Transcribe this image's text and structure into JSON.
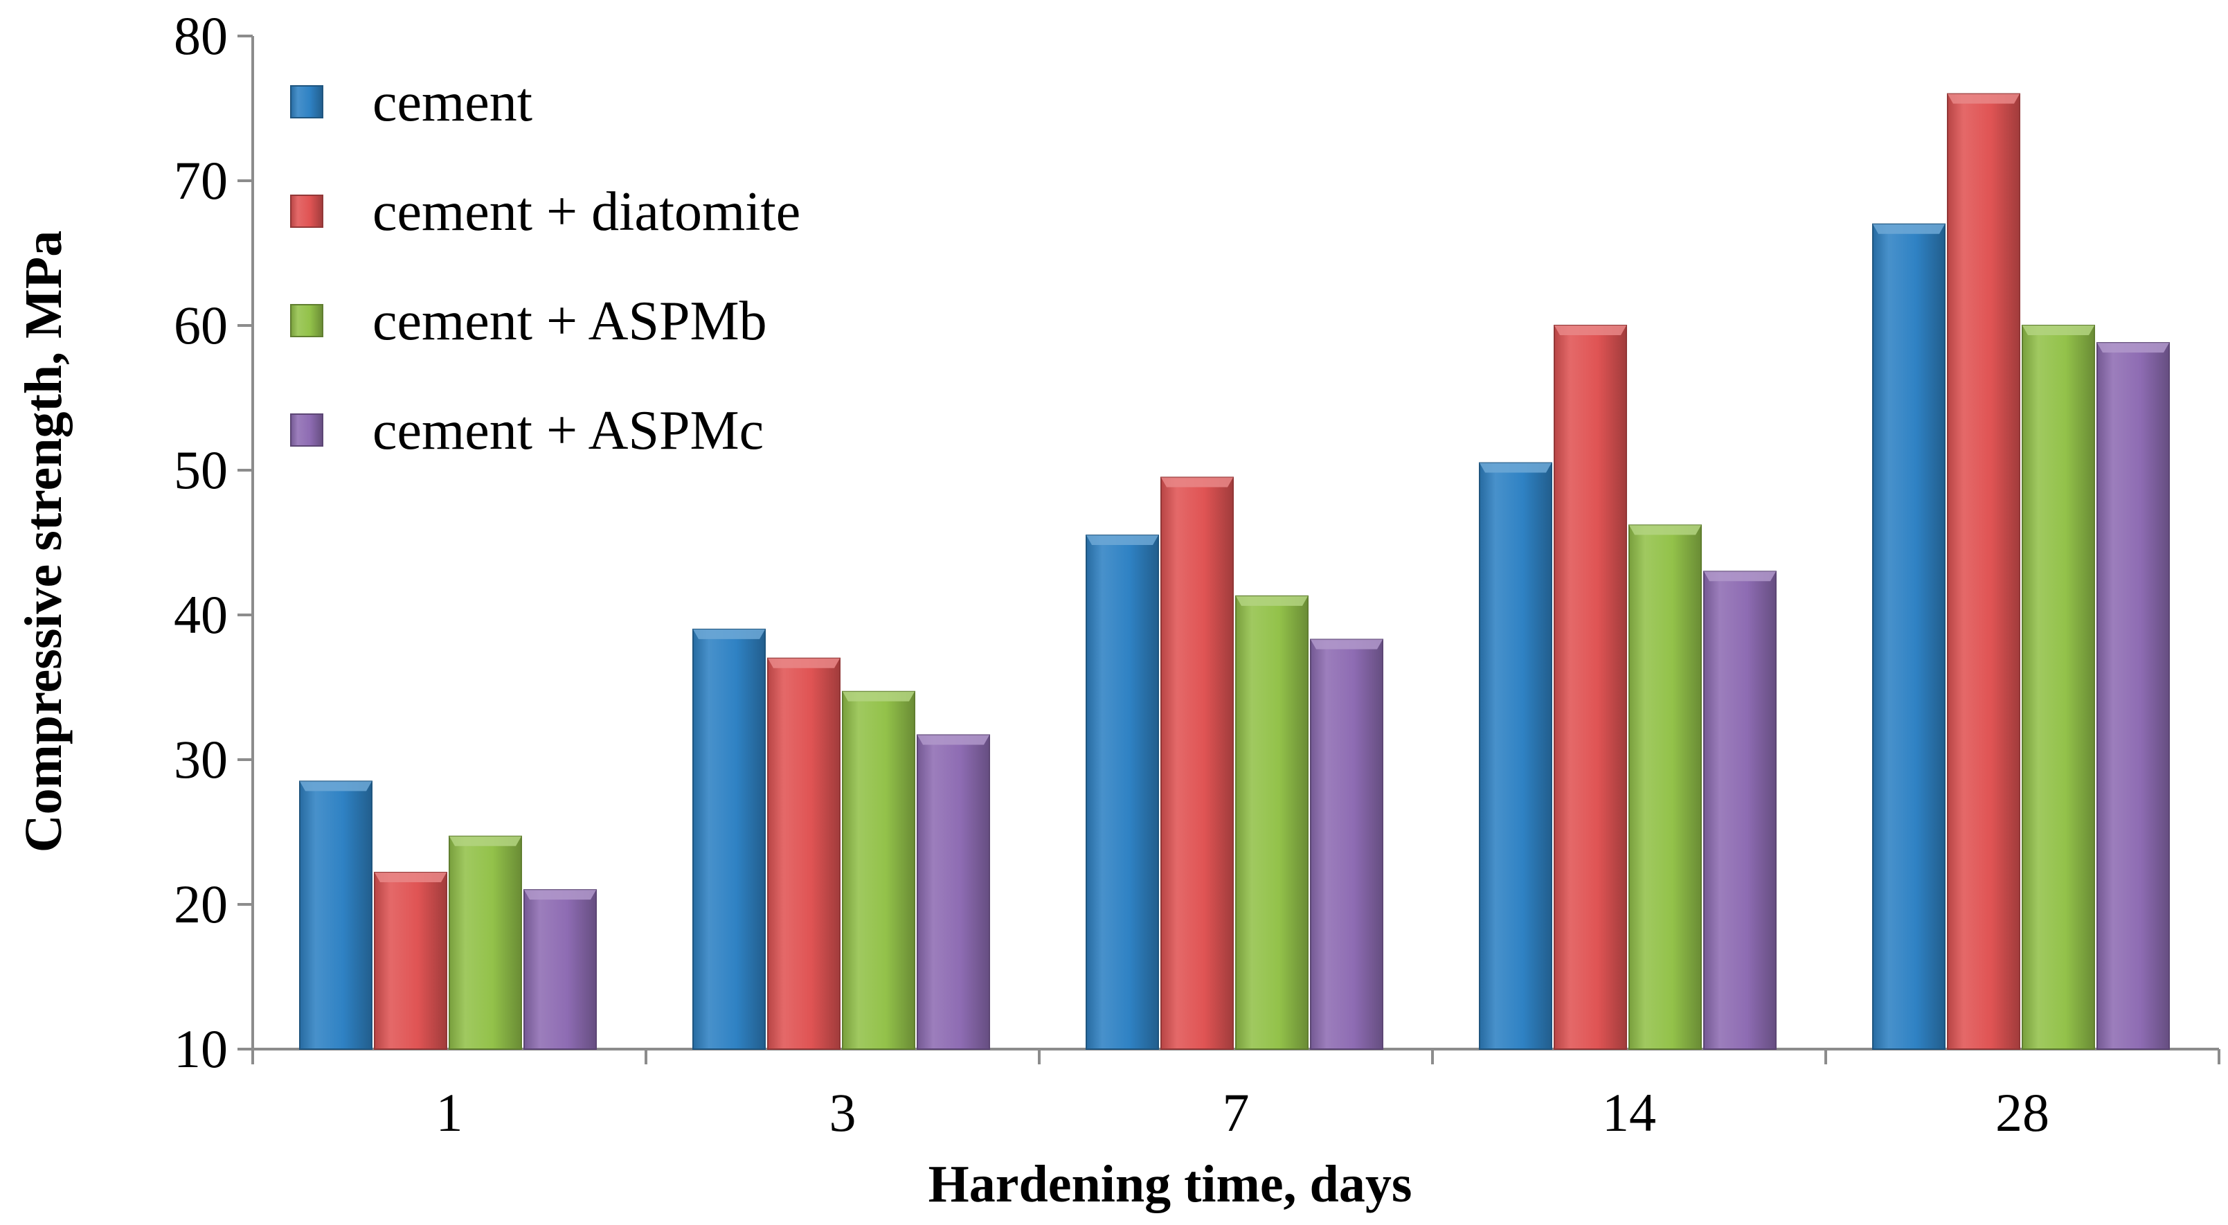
{
  "chart_data": {
    "type": "bar",
    "title": "",
    "xlabel": "Hardening time, days",
    "ylabel": "Compressive strength, MPa",
    "ylim": [
      10,
      80
    ],
    "yticks": [
      10,
      20,
      30,
      40,
      50,
      60,
      70,
      80
    ],
    "categories": [
      "1",
      "3",
      "7",
      "14",
      "28"
    ],
    "legend_position": "top-left",
    "grid": false,
    "series": [
      {
        "name": "cement",
        "color": "#2f82c4",
        "values": [
          28.5,
          39,
          45.5,
          50.5,
          67
        ]
      },
      {
        "name": "cement + diatomite",
        "color": "#e05454",
        "values": [
          22.2,
          37,
          49.5,
          60,
          76
        ]
      },
      {
        "name": "cement + ASPMb",
        "color": "#93c24a",
        "values": [
          24.7,
          34.7,
          41.3,
          46.2,
          60
        ]
      },
      {
        "name": "cement + ASPMc",
        "color": "#8e6cb3",
        "values": [
          21,
          31.7,
          38.3,
          43,
          58.8
        ]
      }
    ]
  }
}
